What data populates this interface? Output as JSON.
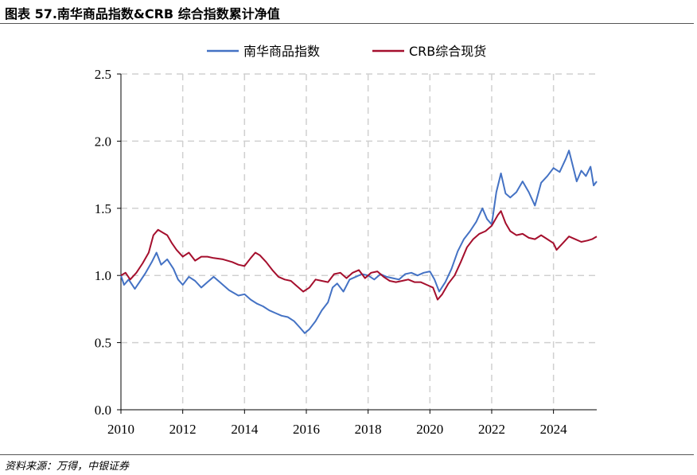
{
  "header": {
    "title": "图表 57.南华商品指数&CRB 综合指数累计净值"
  },
  "footer": {
    "source": "资料来源：万得，中银证券"
  },
  "chart_data": {
    "type": "line",
    "title": "",
    "xlabel": "",
    "ylabel": "",
    "xlim": [
      2010,
      2025.4
    ],
    "ylim": [
      0,
      2.5
    ],
    "x_ticks": [
      "2010",
      "2012",
      "2014",
      "2016",
      "2018",
      "2020",
      "2022",
      "2024"
    ],
    "y_ticks": [
      "0.0",
      "0.5",
      "1.0",
      "1.5",
      "2.0",
      "2.5"
    ],
    "grid": true,
    "legend_position": "top-center",
    "series": [
      {
        "name": "南华商品指数",
        "color": "#4472C4",
        "points": [
          [
            2010.0,
            1.0
          ],
          [
            2010.1,
            0.93
          ],
          [
            2010.25,
            0.97
          ],
          [
            2010.45,
            0.9
          ],
          [
            2010.6,
            0.95
          ],
          [
            2010.8,
            1.02
          ],
          [
            2011.0,
            1.1
          ],
          [
            2011.15,
            1.17
          ],
          [
            2011.3,
            1.08
          ],
          [
            2011.5,
            1.12
          ],
          [
            2011.7,
            1.05
          ],
          [
            2011.85,
            0.97
          ],
          [
            2012.0,
            0.93
          ],
          [
            2012.2,
            0.99
          ],
          [
            2012.4,
            0.96
          ],
          [
            2012.6,
            0.91
          ],
          [
            2012.8,
            0.95
          ],
          [
            2013.0,
            0.99
          ],
          [
            2013.2,
            0.95
          ],
          [
            2013.5,
            0.89
          ],
          [
            2013.8,
            0.85
          ],
          [
            2014.0,
            0.86
          ],
          [
            2014.2,
            0.82
          ],
          [
            2014.4,
            0.79
          ],
          [
            2014.6,
            0.77
          ],
          [
            2014.8,
            0.74
          ],
          [
            2015.0,
            0.72
          ],
          [
            2015.2,
            0.7
          ],
          [
            2015.4,
            0.69
          ],
          [
            2015.6,
            0.66
          ],
          [
            2015.8,
            0.61
          ],
          [
            2015.95,
            0.57
          ],
          [
            2016.1,
            0.6
          ],
          [
            2016.3,
            0.66
          ],
          [
            2016.5,
            0.74
          ],
          [
            2016.7,
            0.8
          ],
          [
            2016.85,
            0.91
          ],
          [
            2017.0,
            0.94
          ],
          [
            2017.2,
            0.88
          ],
          [
            2017.4,
            0.97
          ],
          [
            2017.6,
            0.99
          ],
          [
            2017.8,
            1.01
          ],
          [
            2018.0,
            1.0
          ],
          [
            2018.2,
            0.97
          ],
          [
            2018.4,
            1.01
          ],
          [
            2018.6,
            0.99
          ],
          [
            2018.8,
            0.98
          ],
          [
            2019.0,
            0.97
          ],
          [
            2019.2,
            1.01
          ],
          [
            2019.4,
            1.02
          ],
          [
            2019.6,
            1.0
          ],
          [
            2019.8,
            1.02
          ],
          [
            2020.0,
            1.03
          ],
          [
            2020.15,
            0.97
          ],
          [
            2020.3,
            0.88
          ],
          [
            2020.5,
            0.95
          ],
          [
            2020.7,
            1.05
          ],
          [
            2020.9,
            1.18
          ],
          [
            2021.1,
            1.27
          ],
          [
            2021.3,
            1.33
          ],
          [
            2021.5,
            1.4
          ],
          [
            2021.7,
            1.5
          ],
          [
            2021.85,
            1.42
          ],
          [
            2022.0,
            1.38
          ],
          [
            2022.15,
            1.62
          ],
          [
            2022.3,
            1.76
          ],
          [
            2022.45,
            1.61
          ],
          [
            2022.6,
            1.58
          ],
          [
            2022.8,
            1.62
          ],
          [
            2023.0,
            1.7
          ],
          [
            2023.2,
            1.62
          ],
          [
            2023.4,
            1.52
          ],
          [
            2023.6,
            1.69
          ],
          [
            2023.8,
            1.74
          ],
          [
            2024.0,
            1.8
          ],
          [
            2024.2,
            1.77
          ],
          [
            2024.4,
            1.87
          ],
          [
            2024.5,
            1.93
          ],
          [
            2024.6,
            1.84
          ],
          [
            2024.75,
            1.7
          ],
          [
            2024.9,
            1.78
          ],
          [
            2025.05,
            1.74
          ],
          [
            2025.2,
            1.81
          ],
          [
            2025.3,
            1.67
          ],
          [
            2025.4,
            1.7
          ]
        ]
      },
      {
        "name": "CRB综合现货",
        "color": "#A50F2D",
        "points": [
          [
            2010.0,
            1.0
          ],
          [
            2010.15,
            1.02
          ],
          [
            2010.3,
            0.97
          ],
          [
            2010.5,
            1.02
          ],
          [
            2010.7,
            1.09
          ],
          [
            2010.9,
            1.17
          ],
          [
            2011.05,
            1.3
          ],
          [
            2011.2,
            1.34
          ],
          [
            2011.35,
            1.32
          ],
          [
            2011.5,
            1.3
          ],
          [
            2011.65,
            1.24
          ],
          [
            2011.8,
            1.19
          ],
          [
            2012.0,
            1.14
          ],
          [
            2012.2,
            1.17
          ],
          [
            2012.4,
            1.11
          ],
          [
            2012.6,
            1.14
          ],
          [
            2012.8,
            1.14
          ],
          [
            2013.0,
            1.13
          ],
          [
            2013.3,
            1.12
          ],
          [
            2013.6,
            1.1
          ],
          [
            2013.8,
            1.08
          ],
          [
            2014.0,
            1.07
          ],
          [
            2014.2,
            1.13
          ],
          [
            2014.35,
            1.17
          ],
          [
            2014.5,
            1.15
          ],
          [
            2014.7,
            1.1
          ],
          [
            2014.9,
            1.04
          ],
          [
            2015.1,
            0.99
          ],
          [
            2015.3,
            0.97
          ],
          [
            2015.5,
            0.96
          ],
          [
            2015.7,
            0.92
          ],
          [
            2015.9,
            0.88
          ],
          [
            2016.1,
            0.91
          ],
          [
            2016.3,
            0.97
          ],
          [
            2016.5,
            0.96
          ],
          [
            2016.7,
            0.95
          ],
          [
            2016.9,
            1.01
          ],
          [
            2017.1,
            1.02
          ],
          [
            2017.3,
            0.98
          ],
          [
            2017.5,
            1.02
          ],
          [
            2017.7,
            1.04
          ],
          [
            2017.9,
            0.98
          ],
          [
            2018.1,
            1.02
          ],
          [
            2018.3,
            1.03
          ],
          [
            2018.5,
            0.99
          ],
          [
            2018.7,
            0.96
          ],
          [
            2018.9,
            0.95
          ],
          [
            2019.1,
            0.96
          ],
          [
            2019.3,
            0.97
          ],
          [
            2019.5,
            0.95
          ],
          [
            2019.7,
            0.95
          ],
          [
            2019.9,
            0.93
          ],
          [
            2020.1,
            0.91
          ],
          [
            2020.25,
            0.82
          ],
          [
            2020.4,
            0.86
          ],
          [
            2020.6,
            0.94
          ],
          [
            2020.8,
            1.0
          ],
          [
            2021.0,
            1.1
          ],
          [
            2021.2,
            1.21
          ],
          [
            2021.4,
            1.27
          ],
          [
            2021.6,
            1.31
          ],
          [
            2021.8,
            1.33
          ],
          [
            2022.0,
            1.37
          ],
          [
            2022.2,
            1.45
          ],
          [
            2022.3,
            1.48
          ],
          [
            2022.45,
            1.39
          ],
          [
            2022.6,
            1.33
          ],
          [
            2022.8,
            1.3
          ],
          [
            2023.0,
            1.31
          ],
          [
            2023.2,
            1.28
          ],
          [
            2023.4,
            1.27
          ],
          [
            2023.6,
            1.3
          ],
          [
            2023.8,
            1.27
          ],
          [
            2024.0,
            1.24
          ],
          [
            2024.1,
            1.19
          ],
          [
            2024.3,
            1.24
          ],
          [
            2024.5,
            1.29
          ],
          [
            2024.7,
            1.27
          ],
          [
            2024.9,
            1.25
          ],
          [
            2025.1,
            1.26
          ],
          [
            2025.25,
            1.27
          ],
          [
            2025.4,
            1.29
          ]
        ]
      }
    ]
  }
}
